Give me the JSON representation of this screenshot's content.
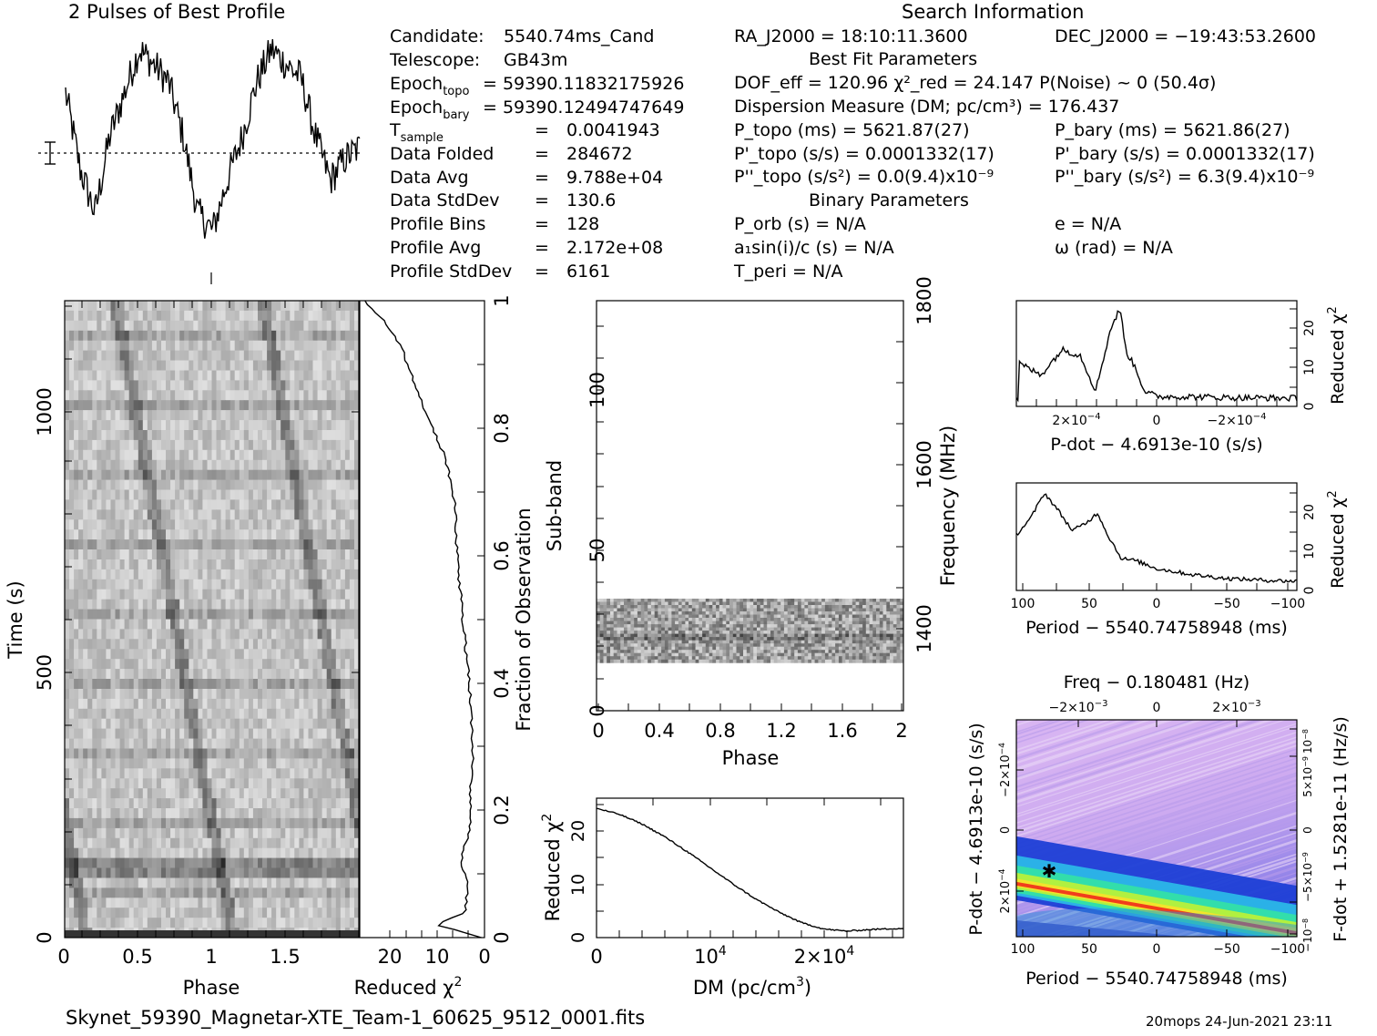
{
  "header": {
    "profile_title": "2 Pulses of Best Profile",
    "search_title": "Search Information",
    "best_fit_title": "Best Fit Parameters",
    "binary_title": "Binary Parameters"
  },
  "candidate_info": [
    {
      "label": "Candidate:",
      "value": "5540.74ms_Cand"
    },
    {
      "label": "Telescope:",
      "value": "GB43m"
    },
    {
      "label": "Epoch_topo",
      "value": "= 59390.11832175926"
    },
    {
      "label": "Epoch_bary",
      "value": "= 59390.12494747649"
    },
    {
      "label": "T_sample",
      "value": "0.0041943"
    },
    {
      "label": "Data Folded",
      "value": "284672"
    },
    {
      "label": "Data Avg",
      "value": "9.788e+04"
    },
    {
      "label": "Data StdDev",
      "value": "130.6"
    },
    {
      "label": "Profile Bins",
      "value": "128"
    },
    {
      "label": "Profile Avg",
      "value": "2.172e+08"
    },
    {
      "label": "Profile StdDev",
      "value": "6161"
    }
  ],
  "search_info": {
    "ra": "RA_J2000 = 18:10:11.3600",
    "dec": "DEC_J2000 = −19:43:53.2600",
    "fit_line": "DOF_eff = 120.96  χ²_red = 24.147  P(Noise) ~ 0  (50.4σ)",
    "dm_line": "Dispersion Measure (DM; pc/cm³) = 176.437",
    "p_topo": "P_topo (ms) = 5621.87(27)",
    "p_bary": "P_bary (ms) = 5621.86(27)",
    "pd_topo": "P'_topo (s/s) = 0.0001332(17)",
    "pd_bary": "P'_bary (s/s) = 0.0001332(17)",
    "pdd_topo": "P''_topo (s/s²) = 0.0(9.4)x10⁻⁹",
    "pdd_bary": "P''_bary (s/s²) = 6.3(9.4)x10⁻⁹",
    "p_orb": "P_orb (s) = N/A",
    "e": "e = N/A",
    "a1sini": "a₁sin(i)/c (s) = N/A",
    "omega": "ω (rad) = N/A",
    "t_peri": "T_peri = N/A"
  },
  "footer": {
    "filename": "Skynet_59390_Magnetar-XTE_Team-1_60625_9512_0001.fits",
    "stamp": "20mops 24-Jun-2021 23:11"
  },
  "chart_data": [
    {
      "type": "line",
      "name": "profile",
      "title": "2 Pulses of Best Profile",
      "x": [
        0.0,
        0.1,
        0.2,
        0.3,
        0.4,
        0.5,
        0.6,
        0.7,
        0.8,
        0.9,
        1.0,
        1.1,
        1.2,
        1.3,
        1.4,
        1.5,
        1.6,
        1.7,
        1.8,
        1.9,
        2.0
      ],
      "values": [
        0.75,
        0.4,
        0.2,
        0.55,
        0.75,
        0.95,
        0.88,
        0.8,
        0.55,
        0.2,
        0.12,
        0.35,
        0.55,
        0.8,
        0.95,
        0.88,
        0.82,
        0.55,
        0.35,
        0.45,
        0.5
      ],
      "xlim": [
        0,
        2
      ]
    },
    {
      "type": "heatmap",
      "name": "time-phase",
      "xlabel": "Phase",
      "ylabel": "Time (s)",
      "xticks": [
        "0",
        "0.5",
        "1",
        "1.5"
      ],
      "yticks": [
        "0",
        "500",
        "1000"
      ],
      "xlim": [
        0,
        2
      ],
      "ylim": [
        0,
        1230
      ]
    },
    {
      "type": "line",
      "name": "time-chi2",
      "xlabel": "Reduced χ²",
      "ylabel": "Fraction of Observation",
      "xticks": [
        "20",
        "10",
        "0"
      ],
      "yticks": [
        "0",
        "0.2",
        "0.4",
        "0.6",
        "0.8",
        "1"
      ],
      "chi2": [
        0.5,
        10,
        4,
        3.5,
        5,
        3.8,
        3,
        3,
        2.5,
        2.6,
        3.2,
        4.5,
        5.5,
        5.8,
        6.2,
        8,
        12,
        15,
        17.5,
        21,
        25
      ],
      "frac": [
        0.0,
        0.02,
        0.04,
        0.08,
        0.12,
        0.15,
        0.18,
        0.22,
        0.28,
        0.33,
        0.4,
        0.5,
        0.58,
        0.62,
        0.68,
        0.75,
        0.82,
        0.88,
        0.93,
        0.97,
        1.0
      ],
      "xlim": [
        26,
        0
      ],
      "ylim": [
        0,
        1
      ]
    },
    {
      "type": "heatmap",
      "name": "subband-phase",
      "xlabel": "Phase",
      "ylabel": "Sub-band",
      "y2label": "Frequency (MHz)",
      "xticks": [
        "0",
        "0.4",
        "0.8",
        "1.2",
        "1.6",
        "2"
      ],
      "yticks": [
        "0",
        "50",
        "100"
      ],
      "y2ticks": [
        "1400",
        "1600",
        "1800"
      ],
      "xlim": [
        0,
        2
      ],
      "ylim": [
        0,
        128
      ],
      "band_rows": [
        15,
        35
      ]
    },
    {
      "type": "line",
      "name": "dm-chi2",
      "xlabel": "DM (pc/cm³)",
      "ylabel": "Reduced χ²",
      "xticks": [
        "0",
        "10⁴",
        "2x10⁴"
      ],
      "yticks": [
        "0",
        "10",
        "20"
      ],
      "x": [
        0,
        2000,
        4000,
        6000,
        8000,
        10000,
        12000,
        14000,
        16000,
        18000,
        20000,
        22000,
        24000,
        26500
      ],
      "values": [
        24.1,
        23,
        21.2,
        18.8,
        16,
        13,
        10,
        7.2,
        4.8,
        2.8,
        1.6,
        1.2,
        1.5,
        1.7
      ],
      "xlim": [
        0,
        27000
      ],
      "ylim": [
        0,
        26
      ]
    },
    {
      "type": "line",
      "name": "pdot-chi2",
      "xlabel": "P-dot − 4.6913e-10 (s/s)",
      "ylabel": "Reduced χ²",
      "xticks": [
        "2x10⁻⁴",
        "0",
        "−2x10⁻⁴"
      ],
      "yticks": [
        "0",
        "10",
        "20"
      ],
      "x": [
        0.00045,
        0.00038,
        0.00031,
        0.00025,
        0.0002,
        0.00015,
        0.00012,
        0.0001,
        7e-05,
        4e-05,
        0.0,
        -0.0001,
        -0.0002,
        -0.0003,
        -0.00045
      ],
      "values": [
        11,
        8,
        14.5,
        13,
        4,
        20,
        25,
        14,
        10,
        4,
        2.5,
        2.5,
        2.3,
        2.2,
        2.1
      ],
      "xlim": [
        0.00046,
        -0.00046
      ],
      "ylim": [
        0,
        27
      ]
    },
    {
      "type": "line",
      "name": "period-chi2",
      "xlabel": "Period − 5540.74758948 (ms)",
      "ylabel": "Reduced χ²",
      "xticks": [
        "100",
        "50",
        "0",
        "−50",
        "−100"
      ],
      "yticks": [
        "0",
        "10",
        "20"
      ],
      "x": [
        100,
        90,
        80,
        70,
        60,
        50,
        42,
        35,
        25,
        15,
        0,
        -25,
        -50,
        -75,
        -100
      ],
      "values": [
        14,
        18,
        24.5,
        20,
        15,
        17,
        19.5,
        14,
        8,
        7.5,
        5.5,
        4,
        3,
        2.6,
        2.3
      ],
      "xlim": [
        100,
        -100
      ],
      "ylim": [
        0,
        27
      ]
    },
    {
      "type": "heatmap",
      "name": "period-pdot",
      "title": "Freq − 0.180481 (Hz)",
      "xlabel": "Period − 5540.74758948 (ms)",
      "ylabel": "P-dot − 4.6913e-10 (s/s)",
      "y2label": "F-dot + 1.5281e-11 (Hz/s)",
      "xticks": [
        "100",
        "50",
        "0",
        "−50",
        "−100"
      ],
      "topticks": [
        "−2x10⁻³",
        "0",
        "2x10⁻³"
      ],
      "yticks": [
        "−2x10⁻⁴",
        "0",
        "2x10⁻⁴"
      ],
      "y2ticks": [
        "10⁻⁸",
        "5x10⁻⁹",
        "0",
        "−5x10⁻⁹",
        "−10⁻⁸"
      ],
      "best_period_offset": 80,
      "best_pdot_offset": 0.00013
    }
  ]
}
